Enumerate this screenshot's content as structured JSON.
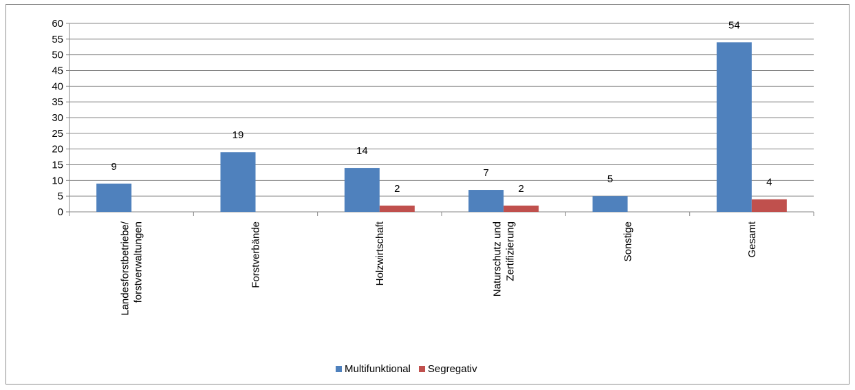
{
  "chart_data": {
    "type": "bar",
    "title": "",
    "xlabel": "",
    "ylabel": "",
    "ylim": [
      0,
      60
    ],
    "yticks": [
      0,
      5,
      10,
      15,
      20,
      25,
      30,
      35,
      40,
      45,
      50,
      55,
      60
    ],
    "grid": true,
    "legend_position": "bottom",
    "categories": [
      [
        "Landesforstbetriebe/",
        "forstverwaltungen"
      ],
      [
        "Forstverbände"
      ],
      [
        "Holzwirtschaft"
      ],
      [
        "Naturschutz und",
        "Zertifizierung"
      ],
      [
        "Sonstige"
      ],
      [
        "Gesamt"
      ]
    ],
    "series": [
      {
        "name": "Multifunktional",
        "color": "#4f81bd",
        "values": [
          9,
          19,
          14,
          7,
          5,
          54
        ]
      },
      {
        "name": "Segregativ",
        "color": "#c0504d",
        "values": [
          0,
          0,
          2,
          2,
          0,
          4
        ]
      }
    ],
    "data_labels": [
      [
        "9",
        "19",
        "14",
        "7",
        "5",
        "54"
      ],
      [
        "",
        "",
        "2",
        "2",
        "",
        "4"
      ]
    ]
  },
  "legend": {
    "items": [
      {
        "label": "Multifunktional",
        "color": "#4f81bd"
      },
      {
        "label": "Segregativ",
        "color": "#c0504d"
      }
    ]
  }
}
